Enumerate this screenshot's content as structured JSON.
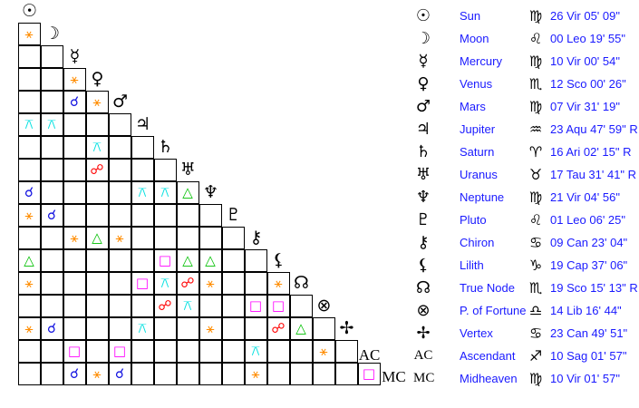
{
  "aspect_styles": {
    "conjunction": {
      "glyph": "☌",
      "color": "#1010e0"
    },
    "sextile": {
      "glyph": "⚹",
      "color": "#ff8c00"
    },
    "trine": {
      "glyph": "△",
      "color": "#00c000"
    },
    "square": {
      "glyph": "□",
      "color": "#ff00ff"
    },
    "opposition": {
      "glyph": "☍",
      "color": "#ff0000"
    },
    "quincunx": {
      "glyph": "⚻",
      "color": "#00e0e0"
    }
  },
  "bodies": [
    {
      "name": "Sun",
      "icon": "sun-icon",
      "glyph": "☉",
      "sign_icon": "virgo-icon",
      "sign": "♍",
      "position": "26 Vir 05' 09\""
    },
    {
      "name": "Moon",
      "icon": "moon-icon",
      "glyph": "☽",
      "sign_icon": "leo-icon",
      "sign": "♌",
      "position": "00 Leo 19' 55\""
    },
    {
      "name": "Mercury",
      "icon": "mercury-icon",
      "glyph": "☿",
      "sign_icon": "virgo-icon",
      "sign": "♍",
      "position": "10 Vir 00' 54\""
    },
    {
      "name": "Venus",
      "icon": "venus-icon",
      "glyph": "♀",
      "sign_icon": "scorpio-icon",
      "sign": "♏",
      "position": "12 Sco 00' 26\""
    },
    {
      "name": "Mars",
      "icon": "mars-icon",
      "glyph": "♂",
      "sign_icon": "virgo-icon",
      "sign": "♍",
      "position": "07 Vir 31' 19\""
    },
    {
      "name": "Jupiter",
      "icon": "jupiter-icon",
      "glyph": "♃",
      "sign_icon": "aquarius-icon",
      "sign": "♒",
      "position": "23 Aqu 47' 59\" R"
    },
    {
      "name": "Saturn",
      "icon": "saturn-icon",
      "glyph": "♄",
      "sign_icon": "aries-icon",
      "sign": "♈",
      "position": "16 Ari 02' 15\" R"
    },
    {
      "name": "Uranus",
      "icon": "uranus-icon",
      "glyph": "♅",
      "sign_icon": "taurus-icon",
      "sign": "♉",
      "position": "17 Tau 31' 41\" R"
    },
    {
      "name": "Neptune",
      "icon": "neptune-icon",
      "glyph": "♆",
      "sign_icon": "virgo-icon",
      "sign": "♍",
      "position": "21 Vir 04' 56\""
    },
    {
      "name": "Pluto",
      "icon": "pluto-icon",
      "glyph": "♇",
      "sign_icon": "leo-icon",
      "sign": "♌",
      "position": "01 Leo 06' 25\""
    },
    {
      "name": "Chiron",
      "icon": "chiron-icon",
      "glyph": "⚷",
      "sign_icon": "cancer-icon",
      "sign": "♋",
      "position": "09 Can 23' 04\""
    },
    {
      "name": "Lilith",
      "icon": "lilith-icon",
      "glyph": "⚸",
      "sign_icon": "capricorn-icon",
      "sign": "♑",
      "position": "19 Cap 37' 06\""
    },
    {
      "name": "True Node",
      "icon": "north-node-icon",
      "glyph": "☊",
      "sign_icon": "scorpio-icon",
      "sign": "♏",
      "position": "19 Sco 15' 13\" R"
    },
    {
      "name": "P. of Fortune",
      "icon": "part-of-fortune-icon",
      "glyph": "⊗",
      "sign_icon": "libra-icon",
      "sign": "♎",
      "position": "14 Lib 16' 44\""
    },
    {
      "name": "Vertex",
      "icon": "vertex-icon",
      "glyph": "✢",
      "sign_icon": "cancer-icon",
      "sign": "♋",
      "position": "23 Can 49' 51\""
    },
    {
      "name": "Ascendant",
      "icon": "ascendant-icon",
      "glyph": "AC",
      "text": true,
      "sign_icon": "sagittarius-icon",
      "sign": "♐",
      "position": "10 Sag 01' 57\""
    },
    {
      "name": "Midheaven",
      "icon": "midheaven-icon",
      "glyph": "MC",
      "text": true,
      "sign_icon": "virgo-icon",
      "sign": "♍",
      "position": "10 Vir 01' 57\""
    }
  ],
  "aspects": [
    {
      "row": 1,
      "col": 0,
      "type": "sextile"
    },
    {
      "row": 3,
      "col": 2,
      "type": "sextile"
    },
    {
      "row": 4,
      "col": 2,
      "type": "conjunction"
    },
    {
      "row": 4,
      "col": 3,
      "type": "sextile"
    },
    {
      "row": 5,
      "col": 0,
      "type": "quincunx"
    },
    {
      "row": 5,
      "col": 1,
      "type": "quincunx"
    },
    {
      "row": 6,
      "col": 3,
      "type": "quincunx"
    },
    {
      "row": 7,
      "col": 3,
      "type": "opposition"
    },
    {
      "row": 8,
      "col": 0,
      "type": "conjunction"
    },
    {
      "row": 8,
      "col": 5,
      "type": "quincunx"
    },
    {
      "row": 8,
      "col": 6,
      "type": "quincunx"
    },
    {
      "row": 8,
      "col": 7,
      "type": "trine"
    },
    {
      "row": 9,
      "col": 0,
      "type": "sextile"
    },
    {
      "row": 9,
      "col": 1,
      "type": "conjunction"
    },
    {
      "row": 10,
      "col": 2,
      "type": "sextile"
    },
    {
      "row": 10,
      "col": 3,
      "type": "trine"
    },
    {
      "row": 10,
      "col": 4,
      "type": "sextile"
    },
    {
      "row": 11,
      "col": 0,
      "type": "trine"
    },
    {
      "row": 11,
      "col": 6,
      "type": "square"
    },
    {
      "row": 11,
      "col": 7,
      "type": "trine"
    },
    {
      "row": 11,
      "col": 8,
      "type": "trine"
    },
    {
      "row": 12,
      "col": 0,
      "type": "sextile"
    },
    {
      "row": 12,
      "col": 5,
      "type": "square"
    },
    {
      "row": 12,
      "col": 6,
      "type": "quincunx"
    },
    {
      "row": 12,
      "col": 7,
      "type": "opposition"
    },
    {
      "row": 12,
      "col": 8,
      "type": "sextile"
    },
    {
      "row": 12,
      "col": 11,
      "type": "sextile"
    },
    {
      "row": 13,
      "col": 6,
      "type": "opposition"
    },
    {
      "row": 13,
      "col": 7,
      "type": "quincunx"
    },
    {
      "row": 13,
      "col": 10,
      "type": "square"
    },
    {
      "row": 13,
      "col": 11,
      "type": "square"
    },
    {
      "row": 14,
      "col": 0,
      "type": "sextile"
    },
    {
      "row": 14,
      "col": 1,
      "type": "conjunction"
    },
    {
      "row": 14,
      "col": 5,
      "type": "quincunx"
    },
    {
      "row": 14,
      "col": 8,
      "type": "sextile"
    },
    {
      "row": 14,
      "col": 11,
      "type": "opposition"
    },
    {
      "row": 14,
      "col": 12,
      "type": "trine"
    },
    {
      "row": 15,
      "col": 2,
      "type": "square"
    },
    {
      "row": 15,
      "col": 4,
      "type": "square"
    },
    {
      "row": 15,
      "col": 10,
      "type": "quincunx"
    },
    {
      "row": 15,
      "col": 13,
      "type": "sextile"
    },
    {
      "row": 16,
      "col": 2,
      "type": "conjunction"
    },
    {
      "row": 16,
      "col": 3,
      "type": "sextile"
    },
    {
      "row": 16,
      "col": 4,
      "type": "conjunction"
    },
    {
      "row": 16,
      "col": 10,
      "type": "sextile"
    },
    {
      "row": 16,
      "col": 15,
      "type": "square"
    }
  ]
}
